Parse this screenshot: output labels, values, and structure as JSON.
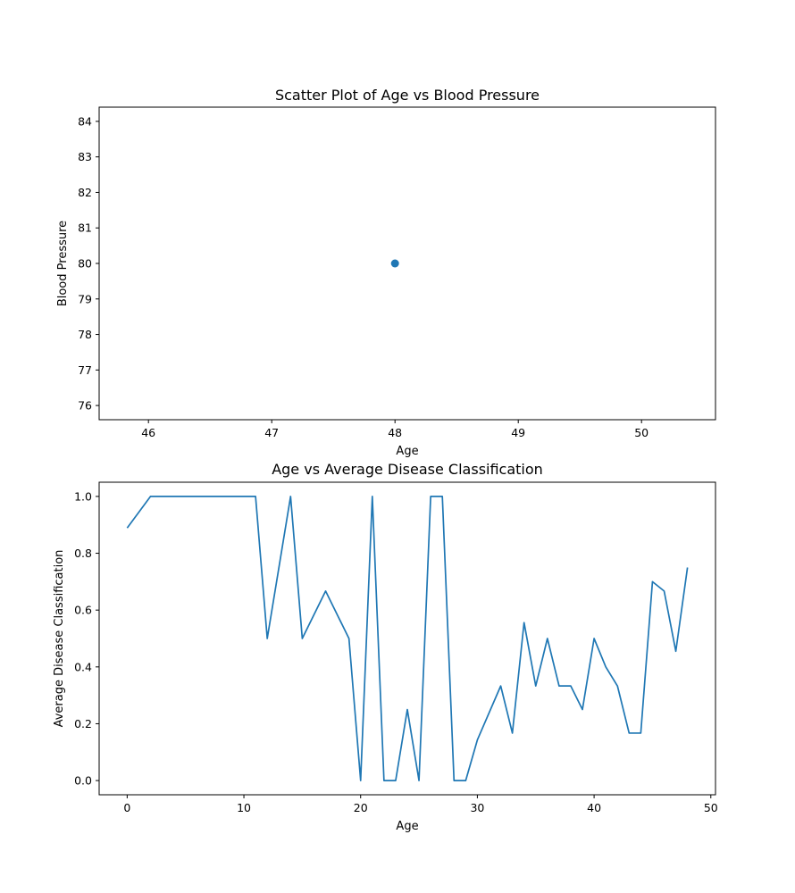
{
  "chart_data": [
    {
      "type": "scatter",
      "title": "Scatter Plot of Age vs Blood Pressure",
      "xlabel": "Age",
      "ylabel": "Blood Pressure",
      "xlim": [
        45.6,
        50.6
      ],
      "ylim": [
        75.6,
        84.4
      ],
      "xticks": [
        46,
        47,
        48,
        49,
        50
      ],
      "yticks": [
        76,
        77,
        78,
        79,
        80,
        81,
        82,
        83,
        84
      ],
      "grid": false,
      "color": "#1f77b4",
      "points": [
        [
          48,
          80
        ]
      ]
    },
    {
      "type": "line",
      "title": "Age vs Average Disease Classification",
      "xlabel": "Age",
      "ylabel": "Average Disease Classification",
      "xlim": [
        -2.4,
        50.4
      ],
      "ylim": [
        -0.05,
        1.05
      ],
      "xticks": [
        0,
        10,
        20,
        30,
        40,
        50
      ],
      "yticks": [
        0.0,
        0.2,
        0.4,
        0.6,
        0.8,
        1.0
      ],
      "grid": false,
      "color": "#1f77b4",
      "x": [
        0,
        2,
        11,
        12,
        14,
        15,
        17,
        19,
        20,
        21,
        22,
        23,
        24,
        25,
        26,
        27,
        28,
        29,
        30,
        32,
        33,
        34,
        35,
        36,
        37,
        38,
        39,
        40,
        41,
        42,
        43,
        44,
        45,
        46,
        47,
        48
      ],
      "y": [
        0.889,
        1.0,
        1.0,
        0.5,
        1.0,
        0.5,
        0.667,
        0.5,
        0.0,
        1.0,
        0.0,
        0.0,
        0.25,
        0.0,
        1.0,
        1.0,
        0.0,
        0.0,
        0.143,
        0.333,
        0.167,
        0.556,
        0.333,
        0.5,
        0.333,
        0.333,
        0.25,
        0.5,
        0.4,
        0.333,
        0.167,
        0.167,
        0.7,
        0.667,
        0.455,
        0.75
      ]
    }
  ]
}
